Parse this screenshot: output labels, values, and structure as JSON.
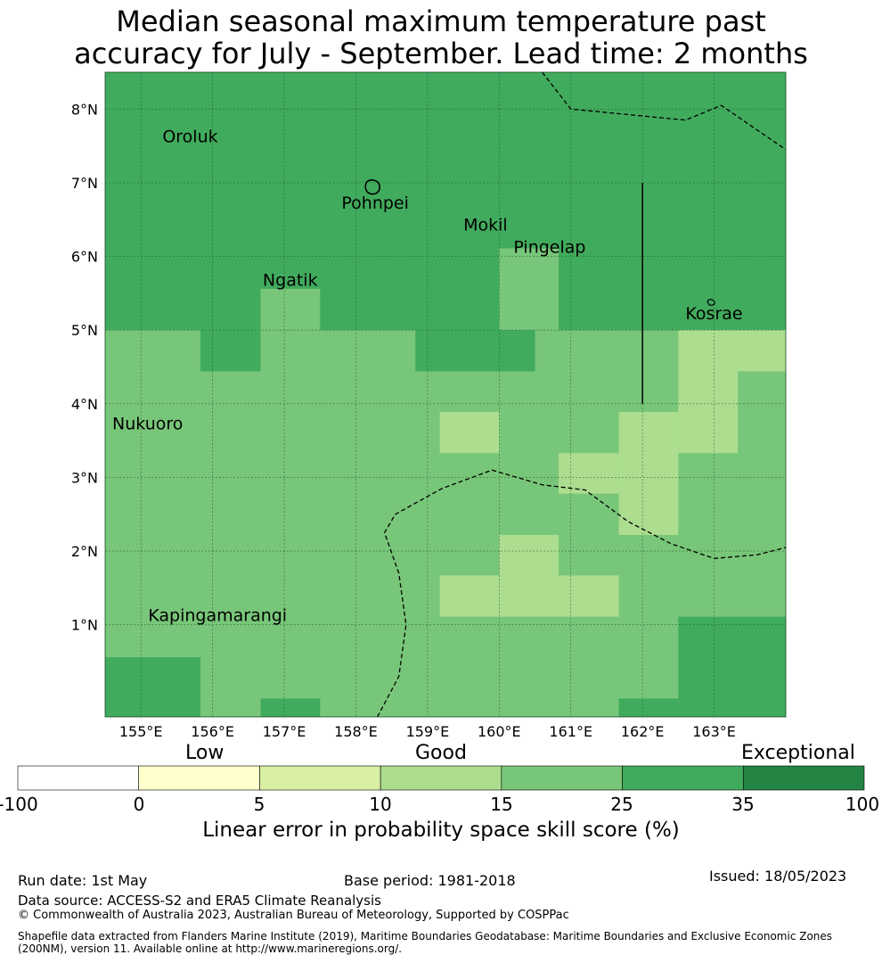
{
  "title_line1": "Median seasonal maximum temperature past",
  "title_line2": "accuracy for July - September. Lead time: 2 months",
  "map": {
    "lon_range": [
      154.5,
      164.0
    ],
    "lat_range": [
      -0.25,
      8.5
    ],
    "lon_ticks": [
      {
        "value": 155,
        "label": "155°E"
      },
      {
        "value": 156,
        "label": "156°E"
      },
      {
        "value": 157,
        "label": "157°E"
      },
      {
        "value": 158,
        "label": "158°E"
      },
      {
        "value": 159,
        "label": "159°E"
      },
      {
        "value": 160,
        "label": "160°E"
      },
      {
        "value": 161,
        "label": "161°E"
      },
      {
        "value": 162,
        "label": "162°E"
      },
      {
        "value": 163,
        "label": "163°E"
      }
    ],
    "lat_ticks": [
      {
        "value": 1,
        "label": "1°N"
      },
      {
        "value": 2,
        "label": "2°N"
      },
      {
        "value": 3,
        "label": "3°N"
      },
      {
        "value": 4,
        "label": "4°N"
      },
      {
        "value": 5,
        "label": "5°N"
      },
      {
        "value": 6,
        "label": "6°N"
      },
      {
        "value": 7,
        "label": "7°N"
      },
      {
        "value": 8,
        "label": "8°N"
      }
    ],
    "places": [
      {
        "name": "Oroluk",
        "lon": 155.3,
        "lat": 7.55
      },
      {
        "name": "Pohnpei",
        "lon": 157.8,
        "lat": 6.65
      },
      {
        "name": "Mokil",
        "lon": 159.5,
        "lat": 6.35
      },
      {
        "name": "Pingelap",
        "lon": 160.2,
        "lat": 6.05
      },
      {
        "name": "Ngatik",
        "lon": 156.7,
        "lat": 5.6
      },
      {
        "name": "Kosrae",
        "lon": 162.6,
        "lat": 5.15
      },
      {
        "name": "Nukuoro",
        "lon": 154.6,
        "lat": 3.65
      },
      {
        "name": "Kapingamarangi",
        "lon": 155.1,
        "lat": 1.05
      }
    ],
    "skill_regions": [
      {
        "class": 5,
        "lon": [
          154.5,
          164.0
        ],
        "lat": [
          5.0,
          8.5
        ]
      },
      {
        "class": 5,
        "lon": [
          155.83,
          156.67
        ],
        "lat": [
          4.44,
          5.0
        ]
      },
      {
        "class": 5,
        "lon": [
          158.83,
          160.5
        ],
        "lat": [
          4.44,
          5.0
        ]
      },
      {
        "class": 4,
        "lon": [
          156.67,
          157.5
        ],
        "lat": [
          5.0,
          5.56
        ]
      },
      {
        "class": 4,
        "lon": [
          160.0,
          160.83
        ],
        "lat": [
          5.0,
          6.11
        ]
      },
      {
        "class": 3,
        "lon": [
          162.5,
          164.0
        ],
        "lat": [
          4.44,
          5.0
        ]
      },
      {
        "class": 3,
        "lon": [
          162.5,
          163.33
        ],
        "lat": [
          3.33,
          4.44
        ]
      },
      {
        "class": 3,
        "lon": [
          161.67,
          162.5
        ],
        "lat": [
          2.22,
          3.89
        ]
      },
      {
        "class": 3,
        "lon": [
          160.83,
          161.67
        ],
        "lat": [
          2.78,
          3.33
        ]
      },
      {
        "class": 3,
        "lon": [
          159.17,
          160.0
        ],
        "lat": [
          3.33,
          3.89
        ]
      },
      {
        "class": 3,
        "lon": [
          160.0,
          160.83
        ],
        "lat": [
          1.11,
          2.22
        ]
      },
      {
        "class": 3,
        "lon": [
          159.17,
          160.0
        ],
        "lat": [
          1.11,
          1.67
        ]
      },
      {
        "class": 3,
        "lon": [
          160.83,
          161.67
        ],
        "lat": [
          1.11,
          1.67
        ]
      },
      {
        "class": 5,
        "lon": [
          154.5,
          155.83
        ],
        "lat": [
          -0.25,
          0.56
        ]
      },
      {
        "class": 5,
        "lon": [
          156.67,
          157.5
        ],
        "lat": [
          -0.25,
          0.0
        ]
      },
      {
        "class": 5,
        "lon": [
          162.5,
          164.0
        ],
        "lat": [
          -0.25,
          1.11
        ]
      },
      {
        "class": 5,
        "lon": [
          161.67,
          162.5
        ],
        "lat": [
          -0.25,
          0.0
        ]
      }
    ],
    "base_class": 4,
    "eez_boundaries": [
      [
        [
          160.6,
          8.5
        ],
        [
          161.0,
          8.0
        ],
        [
          162.6,
          7.85
        ],
        [
          163.1,
          8.05
        ],
        [
          164.0,
          7.45
        ]
      ],
      [
        [
          158.3,
          -0.25
        ],
        [
          158.6,
          0.3
        ],
        [
          158.7,
          1.0
        ],
        [
          158.6,
          1.7
        ],
        [
          158.4,
          2.25
        ],
        [
          158.55,
          2.5
        ],
        [
          159.2,
          2.85
        ],
        [
          159.9,
          3.1
        ],
        [
          160.6,
          2.9
        ],
        [
          161.2,
          2.83
        ],
        [
          161.8,
          2.4
        ],
        [
          162.4,
          2.1
        ],
        [
          163.0,
          1.9
        ],
        [
          163.6,
          1.95
        ],
        [
          164.0,
          2.05
        ]
      ]
    ],
    "boundary_line": [
      [
        162.0,
        7.0
      ],
      [
        162.0,
        4.0
      ]
    ]
  },
  "colorbar": {
    "categories": [
      {
        "label": "Low",
        "value_range": [
          0,
          5
        ]
      },
      {
        "label": "Good",
        "value_range": [
          10,
          15
        ]
      },
      {
        "label": "Exceptional",
        "value_range": [
          35,
          100
        ]
      }
    ],
    "bins": [
      {
        "from": -100,
        "to": 0,
        "color": "#ffffff"
      },
      {
        "from": 0,
        "to": 5,
        "color": "#ffffcc"
      },
      {
        "from": 5,
        "to": 10,
        "color": "#d9f0a3"
      },
      {
        "from": 10,
        "to": 15,
        "color": "#addd8e"
      },
      {
        "from": 15,
        "to": 25,
        "color": "#78c679"
      },
      {
        "from": 25,
        "to": 35,
        "color": "#41ab5d"
      },
      {
        "from": 35,
        "to": 100,
        "color": "#238443"
      }
    ],
    "tick_labels": [
      "-100",
      "0",
      "5",
      "10",
      "15",
      "25",
      "35",
      "100"
    ],
    "label": "Linear error in probability space skill score (%)"
  },
  "footer": {
    "run_date": "Run date: 1st May",
    "base_period": "Base period: 1981-2018",
    "issued": "Issued: 18/05/2023",
    "data_source": "Data source: ACCESS-S2 and ERA5 Climate Reanalysis",
    "copyright": "© Commonwealth of Australia 2023, Australian Bureau of Meteorology, Supported by COSPPac",
    "shapefile_note": "Shapefile data extracted from Flanders Marine Institute (2019), Maritime Boundaries Geodatabase: Maritime Boundaries and Exclusive Economic Zones (200NM), version 11. Available online at http://www.marineregions.org/."
  }
}
